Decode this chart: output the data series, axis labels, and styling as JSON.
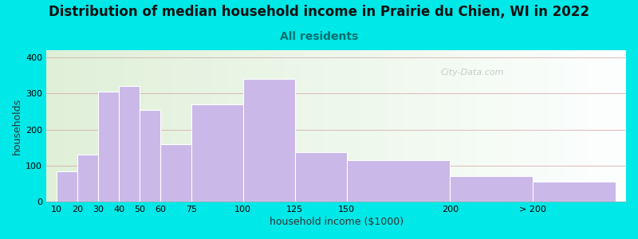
{
  "title": "Distribution of median household income in Prairie du Chien, WI in 2022",
  "subtitle": "All residents",
  "xlabel": "household income ($1000)",
  "ylabel": "households",
  "bar_labels": [
    "10",
    "20",
    "30",
    "40",
    "50",
    "60",
    "75",
    "100",
    "125",
    "150",
    "200",
    "> 200"
  ],
  "bar_values": [
    85,
    130,
    305,
    320,
    255,
    160,
    270,
    340,
    138,
    115,
    70,
    55
  ],
  "bar_color": "#c9b8e8",
  "bar_edge_color": "#ffffff",
  "ylim": [
    0,
    420
  ],
  "yticks": [
    0,
    100,
    200,
    300,
    400
  ],
  "bg_color": "#00e8e8",
  "plot_bg_left": "#dff0d8",
  "plot_bg_right": "#f0f0f0",
  "title_fontsize": 12,
  "subtitle_fontsize": 10,
  "subtitle_color": "#007070",
  "axis_label_fontsize": 9,
  "tick_fontsize": 8,
  "watermark": "City-Data.com",
  "left_edges": [
    10,
    20,
    30,
    40,
    50,
    60,
    75,
    100,
    125,
    150,
    200,
    240
  ],
  "bar_widths": [
    10,
    10,
    10,
    10,
    10,
    15,
    25,
    25,
    25,
    50,
    40,
    40
  ],
  "xlim_left": 5,
  "xlim_right": 285
}
